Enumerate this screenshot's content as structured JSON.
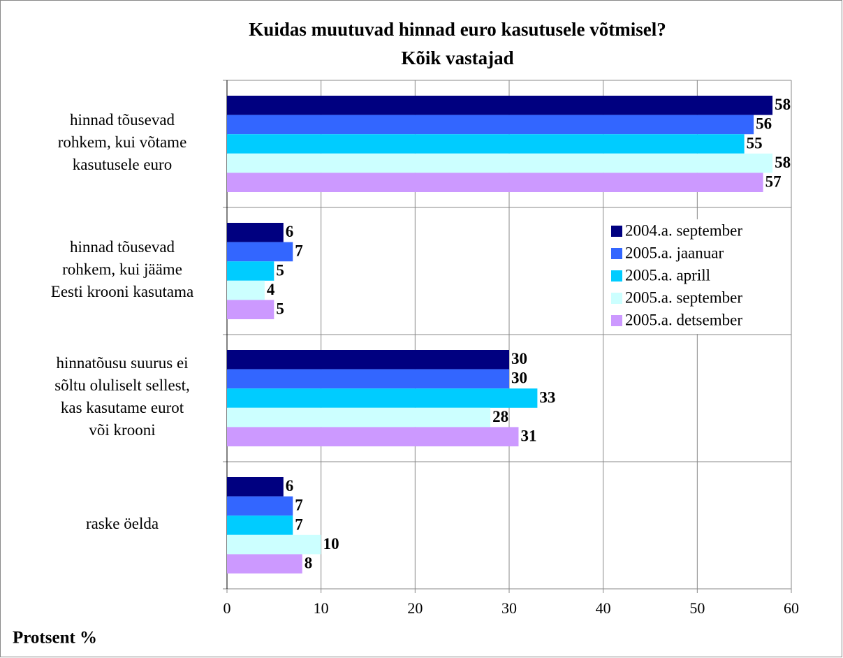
{
  "chart_data": {
    "type": "bar",
    "orientation": "horizontal",
    "title": "Kuidas muutuvad hinnad euro kasutusele võtmisel?",
    "subtitle": "Kõik vastajad",
    "x_label": "Protsent %",
    "categories": [
      "hinnad tõusevad\nrohkem, kui võtame\nkasutusele euro",
      "hinnad tõusevad\nrohkem, kui jääme\nEesti krooni kasutama",
      "hinnatõusu suurus ei\nsõltu oluliselt sellest,\nkas kasutame eurot\nvõi krooni",
      "raske öelda"
    ],
    "series": [
      {
        "name": "2004.a. september",
        "color": "#000080",
        "values": [
          58,
          6,
          30,
          6
        ]
      },
      {
        "name": "2005.a. jaanuar",
        "color": "#3366ff",
        "values": [
          56,
          7,
          30,
          7
        ]
      },
      {
        "name": "2005.a. aprill",
        "color": "#00ccff",
        "values": [
          55,
          5,
          33,
          7
        ]
      },
      {
        "name": "2005.a. september",
        "color": "#ccffff",
        "values": [
          58,
          4,
          28,
          10
        ]
      },
      {
        "name": "2005.a. detsember",
        "color": "#cc99ff",
        "values": [
          57,
          5,
          31,
          8
        ]
      }
    ],
    "xlim": [
      0,
      60
    ],
    "xticks": [
      0,
      10,
      20,
      30,
      40,
      50,
      60
    ],
    "grid": true,
    "legend": "right"
  }
}
